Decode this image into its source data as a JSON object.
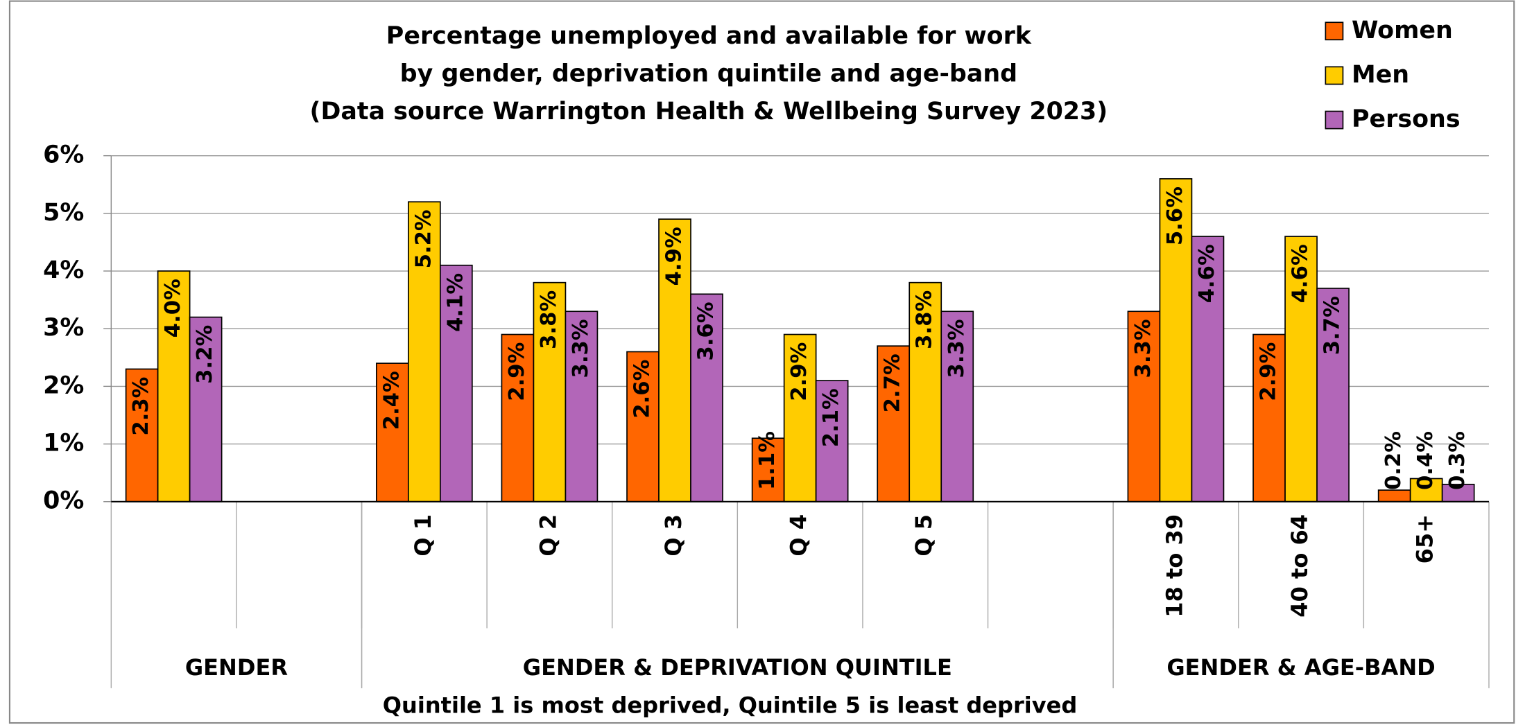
{
  "chart_data": {
    "type": "bar",
    "title": [
      "Percentage unemployed and available for work",
      "by gender, deprivation quintile and age-band",
      "(Data source Warrington Health & Wellbeing Survey 2023)"
    ],
    "x_label": "Quintile 1 is most deprived, Quintile 5 is least deprived",
    "categories": [
      null,
      null,
      "Q 1",
      "Q 2",
      "Q 3",
      "Q 4",
      "Q 5",
      null,
      "18 to 39",
      "40 to 64",
      "65+"
    ],
    "groups": [
      {
        "name": "GENDER",
        "span": [
          0,
          1
        ]
      },
      {
        "name": "GENDER & DEPRIVATION QUINTILE",
        "span": [
          2,
          7
        ]
      },
      {
        "name": "GENDER & AGE-BAND",
        "span": [
          8,
          10
        ]
      }
    ],
    "series": [
      {
        "name": "Women",
        "color": "#ff6600",
        "values": [
          2.3,
          null,
          2.4,
          2.9,
          2.6,
          1.1,
          2.7,
          null,
          3.3,
          2.9,
          0.2
        ],
        "value_labels": [
          "2.3%",
          null,
          "2.4%",
          "2.9%",
          "2.6%",
          "1.1%",
          "2.7%",
          null,
          "3.3%",
          "2.9%",
          "0.2%"
        ]
      },
      {
        "name": "Men",
        "color": "#ffcc00",
        "values": [
          4.0,
          null,
          5.2,
          3.8,
          4.9,
          2.9,
          3.8,
          null,
          5.6,
          4.6,
          0.4
        ],
        "value_labels": [
          "4.0%",
          null,
          "5.2%",
          "3.8%",
          "4.9%",
          "2.9%",
          "3.8%",
          null,
          "5.6%",
          "4.6%",
          "0.4%"
        ]
      },
      {
        "name": "Persons",
        "color": "#b266b8",
        "values": [
          3.2,
          null,
          4.1,
          3.3,
          3.6,
          2.1,
          3.3,
          null,
          4.6,
          3.7,
          0.3
        ],
        "value_labels": [
          "3.2%",
          null,
          "4.1%",
          "3.3%",
          "3.6%",
          "2.1%",
          "3.3%",
          null,
          "4.6%",
          "3.7%",
          "0.3%"
        ]
      }
    ],
    "ylim": [
      0,
      6
    ],
    "yticks": [
      {
        "value": 0,
        "label": "0%"
      },
      {
        "value": 1,
        "label": "1%"
      },
      {
        "value": 2,
        "label": "2%"
      },
      {
        "value": 3,
        "label": "3%"
      },
      {
        "value": 4,
        "label": "4%"
      },
      {
        "value": 5,
        "label": "5%"
      },
      {
        "value": 6,
        "label": "6%"
      }
    ],
    "grid": true,
    "legend": "top-right"
  }
}
